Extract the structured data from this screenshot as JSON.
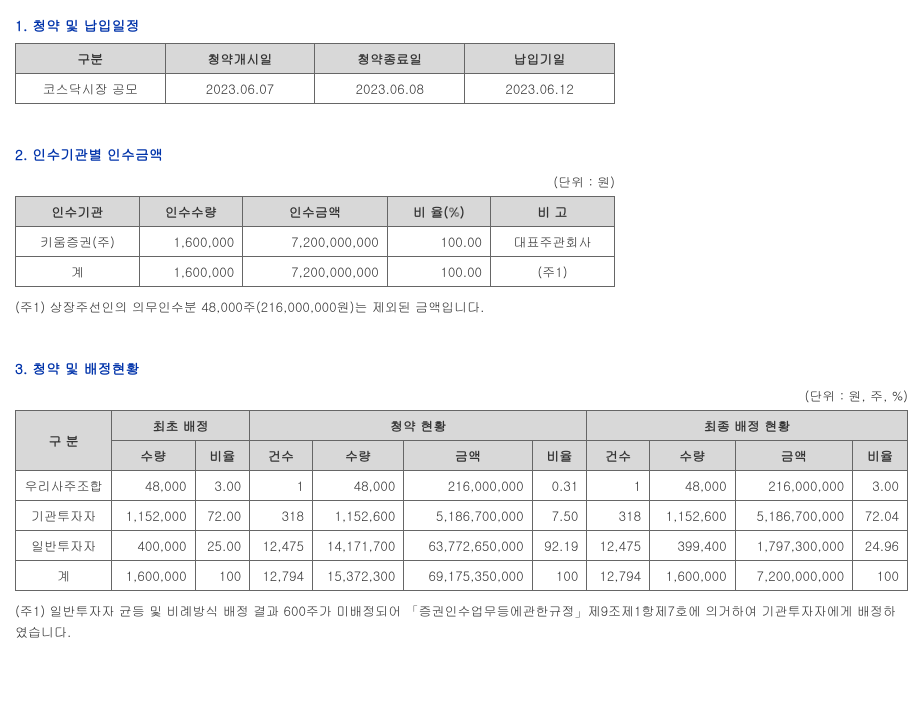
{
  "section1": {
    "title": "1. 청약 및 납입일정",
    "headers": [
      "구분",
      "청약개시일",
      "청약종료일",
      "납입기일"
    ],
    "rows": [
      [
        "코스닥시장 공모",
        "2023.06.07",
        "2023.06.08",
        "2023.06.12"
      ]
    ]
  },
  "section2": {
    "title": "2. 인수기관별 인수금액",
    "unit": "(단위 : 원)",
    "headers": [
      "인수기관",
      "인수수량",
      "인수금액",
      "비 율(%)",
      "비  고"
    ],
    "rows": [
      {
        "org": "키움증권(주)",
        "qty": "1,600,000",
        "amt": "7,200,000,000",
        "ratio": "100.00",
        "note": "대표주관회사"
      },
      {
        "org": "계",
        "qty": "1,600,000",
        "amt": "7,200,000,000",
        "ratio": "100.00",
        "note": "(주1)"
      }
    ],
    "footnote": "(주1) 상장주선인의 의무인수분 48,000주(216,000,000원)는 제외된 금액입니다."
  },
  "section3": {
    "title": "3. 청약 및 배정현황",
    "unit": "(단위 : 원, 주, %)",
    "header_row1": [
      "구  분",
      "최초 배정",
      "청약 현황",
      "최종 배정 현황"
    ],
    "header_row2": [
      "수량",
      "비율",
      "건수",
      "수량",
      "금액",
      "비율",
      "건수",
      "수량",
      "금액",
      "비율"
    ],
    "rows": [
      {
        "cat": "우리사주조합",
        "init_qty": "48,000",
        "init_ratio": "3.00",
        "sub_cnt": "1",
        "sub_qty": "48,000",
        "sub_amt": "216,000,000",
        "sub_ratio": "0.31",
        "fin_cnt": "1",
        "fin_qty": "48,000",
        "fin_amt": "216,000,000",
        "fin_ratio": "3.00"
      },
      {
        "cat": "기관투자자",
        "init_qty": "1,152,000",
        "init_ratio": "72.00",
        "sub_cnt": "318",
        "sub_qty": "1,152,600",
        "sub_amt": "5,186,700,000",
        "sub_ratio": "7.50",
        "fin_cnt": "318",
        "fin_qty": "1,152,600",
        "fin_amt": "5,186,700,000",
        "fin_ratio": "72.04"
      },
      {
        "cat": "일반투자자",
        "init_qty": "400,000",
        "init_ratio": "25.00",
        "sub_cnt": "12,475",
        "sub_qty": "14,171,700",
        "sub_amt": "63,772,650,000",
        "sub_ratio": "92.19",
        "fin_cnt": "12,475",
        "fin_qty": "399,400",
        "fin_amt": "1,797,300,000",
        "fin_ratio": "24.96"
      },
      {
        "cat": "계",
        "init_qty": "1,600,000",
        "init_ratio": "100",
        "sub_cnt": "12,794",
        "sub_qty": "15,372,300",
        "sub_amt": "69,175,350,000",
        "sub_ratio": "100",
        "fin_cnt": "12,794",
        "fin_qty": "1,600,000",
        "fin_amt": "7,200,000,000",
        "fin_ratio": "100"
      }
    ],
    "footnote": "(주1) 일반투자자 균등 및 비례방식 배정 결과 600주가 미배정되어 「증권인수업무등에관한규정」제9조제1항제7호에 의거하여 기관투자자에게 배정하였습니다."
  }
}
